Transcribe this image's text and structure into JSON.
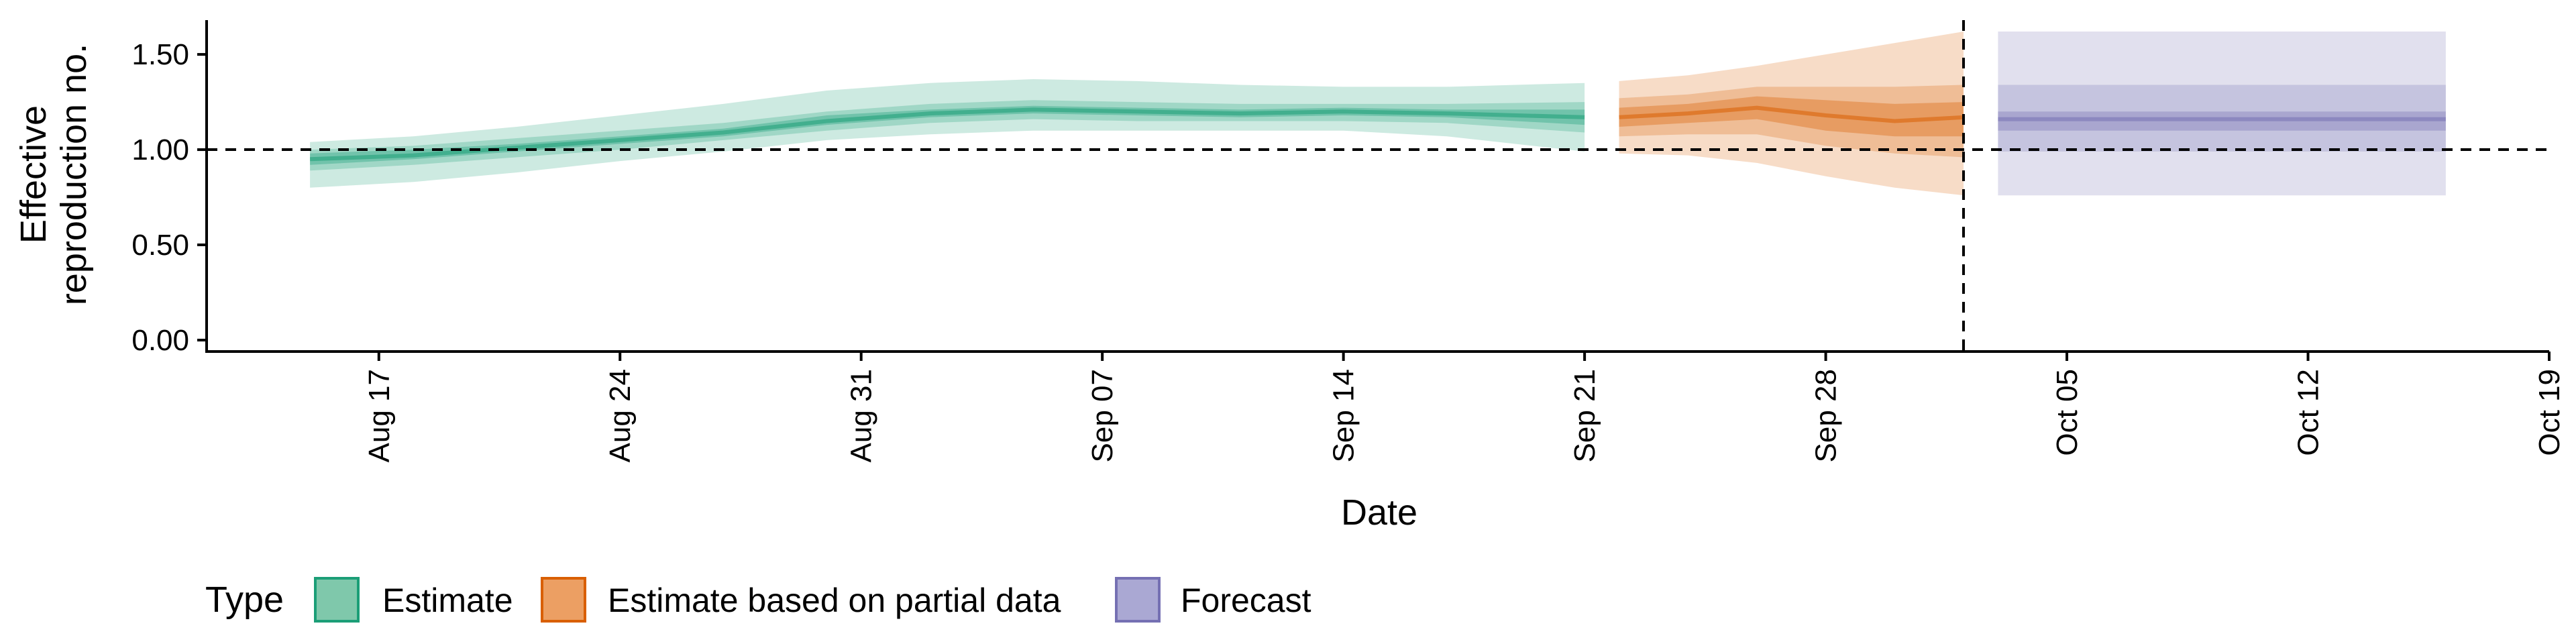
{
  "chart_data": {
    "type": "area",
    "title": "",
    "xlabel": "Date",
    "ylabel_lines": [
      "Effective",
      "reproduction no."
    ],
    "yticks": [
      0.0,
      0.5,
      1.0,
      1.5
    ],
    "ytick_labels": [
      "0.00",
      "0.50",
      "1.00",
      "1.50"
    ],
    "ylim": [
      -0.06,
      1.68
    ],
    "xlim": [
      "2020-08-12",
      "2020-10-19"
    ],
    "xticks": [
      "2020-08-17",
      "2020-08-24",
      "2020-08-31",
      "2020-09-07",
      "2020-09-14",
      "2020-09-21",
      "2020-09-28",
      "2020-10-05",
      "2020-10-12",
      "2020-10-19"
    ],
    "xtick_labels": [
      "Aug 17",
      "Aug 24",
      "Aug 31",
      "Sep 07",
      "Sep 14",
      "Sep 21",
      "Sep 28",
      "Oct 05",
      "Oct 12",
      "Oct 19"
    ],
    "reference_hline": 1.0,
    "reference_vline": "2020-10-02",
    "legend": {
      "title": "Type",
      "position": "bottom-left",
      "items": [
        {
          "label": "Estimate",
          "fill": "#7fc8ab",
          "stroke": "#1b9e77"
        },
        {
          "label": "Estimate based on partial data",
          "fill": "#ec9f63",
          "stroke": "#d95f02"
        },
        {
          "label": "Forecast",
          "fill": "#aaa8d3",
          "stroke": "#7570b3"
        }
      ]
    },
    "series": [
      {
        "name": "Estimate",
        "color": "#1b9e77",
        "x": [
          "2020-08-15",
          "2020-08-18",
          "2020-08-21",
          "2020-08-24",
          "2020-08-27",
          "2020-08-30",
          "2020-09-02",
          "2020-09-05",
          "2020-09-08",
          "2020-09-11",
          "2020-09-14",
          "2020-09-17",
          "2020-09-21"
        ],
        "median": [
          0.95,
          0.97,
          1.01,
          1.05,
          1.09,
          1.15,
          1.19,
          1.21,
          1.2,
          1.19,
          1.2,
          1.19,
          1.17
        ],
        "inner_lower": [
          0.92,
          0.95,
          0.99,
          1.03,
          1.07,
          1.13,
          1.17,
          1.19,
          1.18,
          1.17,
          1.18,
          1.17,
          1.13
        ],
        "inner_upper": [
          0.98,
          1.0,
          1.03,
          1.07,
          1.11,
          1.18,
          1.21,
          1.23,
          1.22,
          1.21,
          1.22,
          1.21,
          1.21
        ],
        "mid_lower": [
          0.89,
          0.92,
          0.96,
          1.0,
          1.05,
          1.1,
          1.14,
          1.16,
          1.15,
          1.15,
          1.15,
          1.14,
          1.09
        ],
        "mid_upper": [
          1.0,
          1.02,
          1.06,
          1.1,
          1.14,
          1.2,
          1.24,
          1.26,
          1.25,
          1.24,
          1.24,
          1.24,
          1.25
        ],
        "outer_lower": [
          0.8,
          0.83,
          0.88,
          0.94,
          0.99,
          1.05,
          1.08,
          1.1,
          1.1,
          1.1,
          1.1,
          1.07,
          0.99
        ],
        "outer_upper": [
          1.04,
          1.07,
          1.12,
          1.18,
          1.24,
          1.31,
          1.35,
          1.37,
          1.36,
          1.34,
          1.33,
          1.33,
          1.35
        ]
      },
      {
        "name": "Estimate based on partial data",
        "color": "#d95f02",
        "x": [
          "2020-09-22",
          "2020-09-24",
          "2020-09-26",
          "2020-09-28",
          "2020-09-30",
          "2020-10-02"
        ],
        "median": [
          1.17,
          1.19,
          1.22,
          1.18,
          1.15,
          1.17
        ],
        "inner_lower": [
          1.12,
          1.14,
          1.16,
          1.1,
          1.07,
          1.07
        ],
        "inner_upper": [
          1.22,
          1.24,
          1.28,
          1.26,
          1.24,
          1.25
        ],
        "mid_lower": [
          1.07,
          1.08,
          1.08,
          1.02,
          0.98,
          0.96
        ],
        "mid_upper": [
          1.27,
          1.29,
          1.33,
          1.33,
          1.33,
          1.34
        ],
        "outer_lower": [
          0.98,
          0.97,
          0.93,
          0.86,
          0.8,
          0.76
        ],
        "outer_upper": [
          1.36,
          1.39,
          1.44,
          1.5,
          1.56,
          1.62
        ]
      },
      {
        "name": "Forecast",
        "color": "#7570b3",
        "x": [
          "2020-10-03",
          "2020-10-16"
        ],
        "median": [
          1.16,
          1.16
        ],
        "inner_lower": [
          1.1,
          1.1
        ],
        "inner_upper": [
          1.2,
          1.2
        ],
        "mid_lower": [
          0.99,
          0.99
        ],
        "mid_upper": [
          1.34,
          1.34
        ],
        "outer_lower": [
          0.76,
          0.76
        ],
        "outer_upper": [
          1.62,
          1.62
        ]
      }
    ]
  }
}
